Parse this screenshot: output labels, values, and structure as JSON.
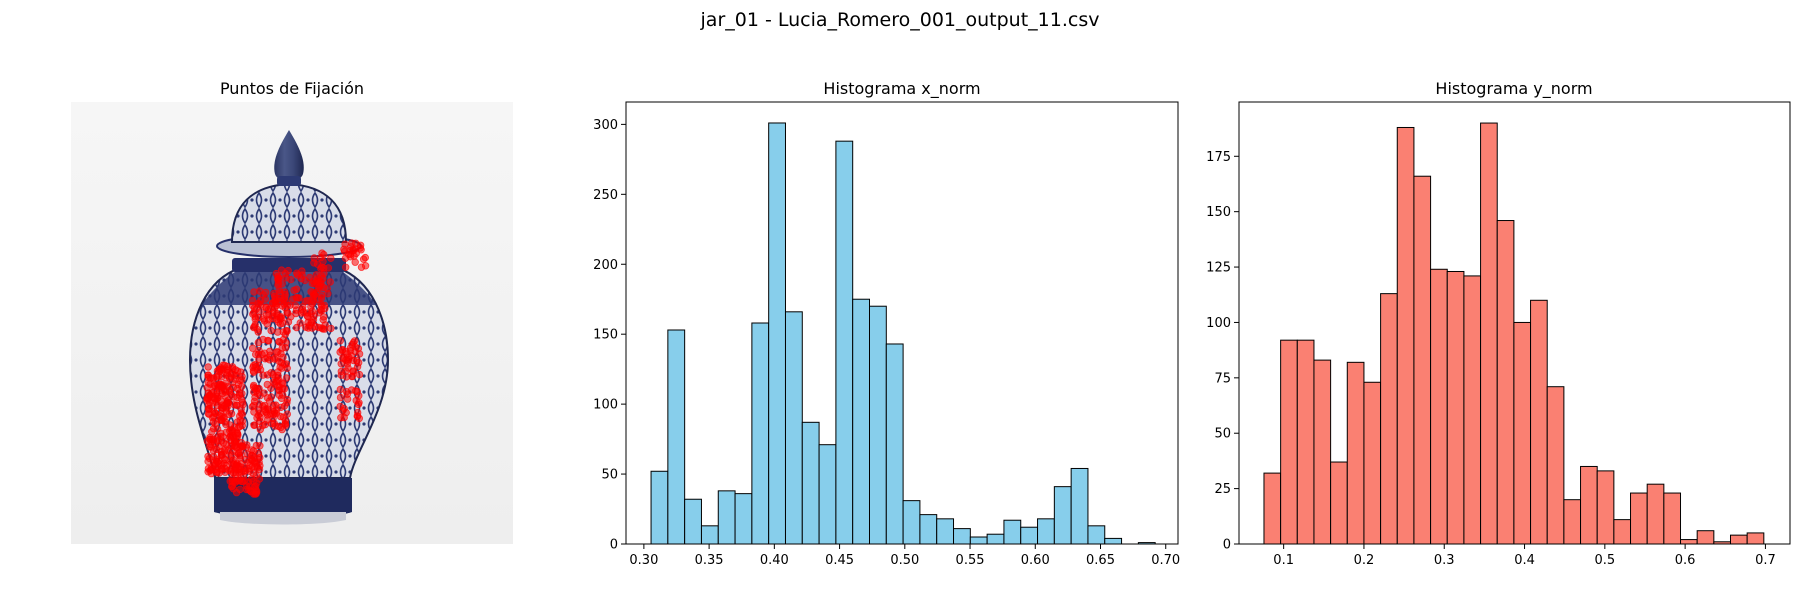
{
  "figure": {
    "suptitle": "jar_01 - Lucia_Romero_001_output_11.csv"
  },
  "image_panel": {
    "title": "Puntos de Fijación",
    "content": "blue-and-white porcelain ginger jar photograph with red fixation points"
  },
  "chart_data": [
    {
      "type": "bar",
      "title": "Histograma x_norm",
      "xlabel": "",
      "ylabel": "",
      "bin_start": 0.3055,
      "bin_width": 0.01288,
      "values": [
        52,
        153,
        32,
        13,
        38,
        36,
        158,
        301,
        166,
        87,
        71,
        288,
        175,
        170,
        143,
        31,
        21,
        18,
        11,
        5,
        7,
        17,
        12,
        18,
        41,
        54,
        13,
        4,
        0,
        1
      ],
      "xlim": [
        0.2863,
        0.7094
      ],
      "ylim": [
        0,
        316
      ],
      "xticks": [
        0.3,
        0.35,
        0.4,
        0.45,
        0.5,
        0.55,
        0.6,
        0.65,
        0.7
      ],
      "xtick_labels": [
        "0.30",
        "0.35",
        "0.40",
        "0.45",
        "0.50",
        "0.55",
        "0.60",
        "0.65",
        "0.70"
      ],
      "yticks": [
        0,
        50,
        100,
        150,
        200,
        250,
        300
      ],
      "ytick_labels": [
        "0",
        "50",
        "100",
        "150",
        "200",
        "250",
        "300"
      ],
      "bar_color": "#87ceeb",
      "edge_color": "#000000"
    },
    {
      "type": "bar",
      "title": "Histograma y_norm",
      "xlabel": "",
      "ylabel": "",
      "bin_start": 0.0755,
      "bin_width": 0.02075,
      "values": [
        32,
        92,
        92,
        83,
        37,
        82,
        73,
        113,
        188,
        166,
        124,
        123,
        121,
        190,
        146,
        100,
        110,
        71,
        20,
        35,
        33,
        11,
        23,
        27,
        23,
        2,
        6,
        1,
        4,
        5
      ],
      "xlim": [
        0.0444,
        0.7306
      ],
      "ylim": [
        0,
        199.5
      ],
      "xticks": [
        0.1,
        0.2,
        0.3,
        0.4,
        0.5,
        0.6,
        0.7
      ],
      "xtick_labels": [
        "0.1",
        "0.2",
        "0.3",
        "0.4",
        "0.5",
        "0.6",
        "0.7"
      ],
      "yticks": [
        0,
        25,
        50,
        75,
        100,
        125,
        150,
        175
      ],
      "ytick_labels": [
        "0",
        "25",
        "50",
        "75",
        "100",
        "125",
        "150",
        "175"
      ],
      "bar_color": "#fa8072",
      "edge_color": "#000000"
    }
  ]
}
